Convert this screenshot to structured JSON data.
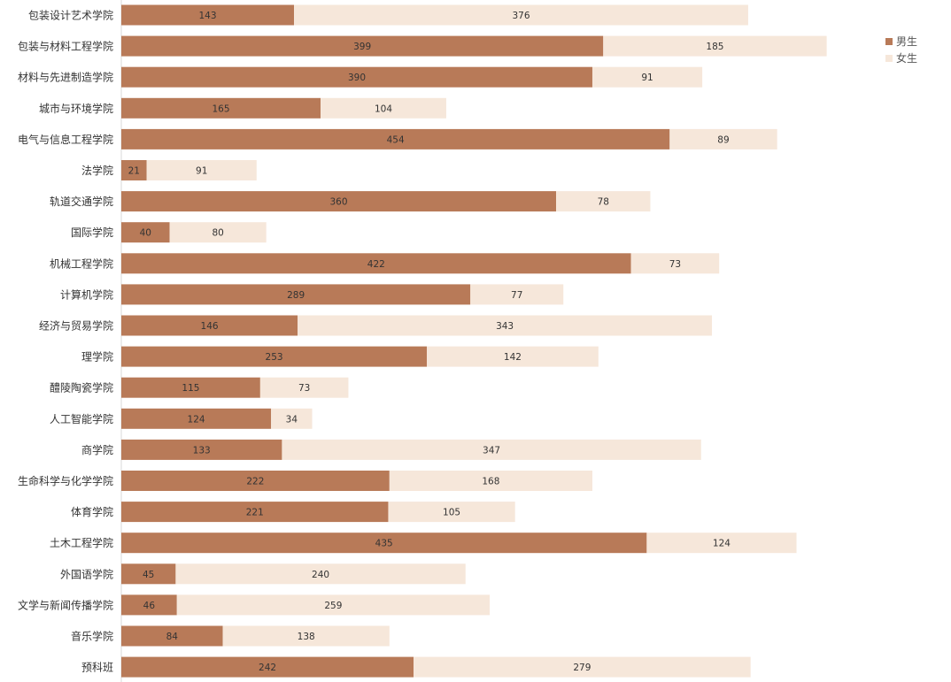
{
  "chart_data": {
    "type": "bar",
    "orientation": "horizontal",
    "stacked": true,
    "categories": [
      "包装设计艺术学院",
      "包装与材料工程学院",
      "材料与先进制造学院",
      "城市与环境学院",
      "电气与信息工程学院",
      "法学院",
      "轨道交通学院",
      "国际学院",
      "机械工程学院",
      "计算机学院",
      "经济与贸易学院",
      "理学院",
      "醴陵陶瓷学院",
      "人工智能学院",
      "商学院",
      "生命科学与化学学院",
      "体育学院",
      "土木工程学院",
      "外国语学院",
      "文学与新闻传播学院",
      "音乐学院",
      "预科班"
    ],
    "series": [
      {
        "name": "男生",
        "color": "#b87a58",
        "values": [
          143,
          399,
          390,
          165,
          454,
          21,
          360,
          40,
          422,
          289,
          146,
          253,
          115,
          124,
          133,
          222,
          221,
          435,
          45,
          46,
          84,
          242
        ]
      },
      {
        "name": "女生",
        "color": "#f6e7da",
        "values": [
          376,
          185,
          91,
          104,
          89,
          91,
          78,
          80,
          73,
          77,
          343,
          142,
          73,
          34,
          347,
          168,
          105,
          124,
          240,
          259,
          138,
          279
        ]
      }
    ],
    "xlim": [
      0,
      640
    ],
    "grid": false,
    "legend_position": "top-right",
    "title": "",
    "xlabel": "",
    "ylabel": ""
  }
}
